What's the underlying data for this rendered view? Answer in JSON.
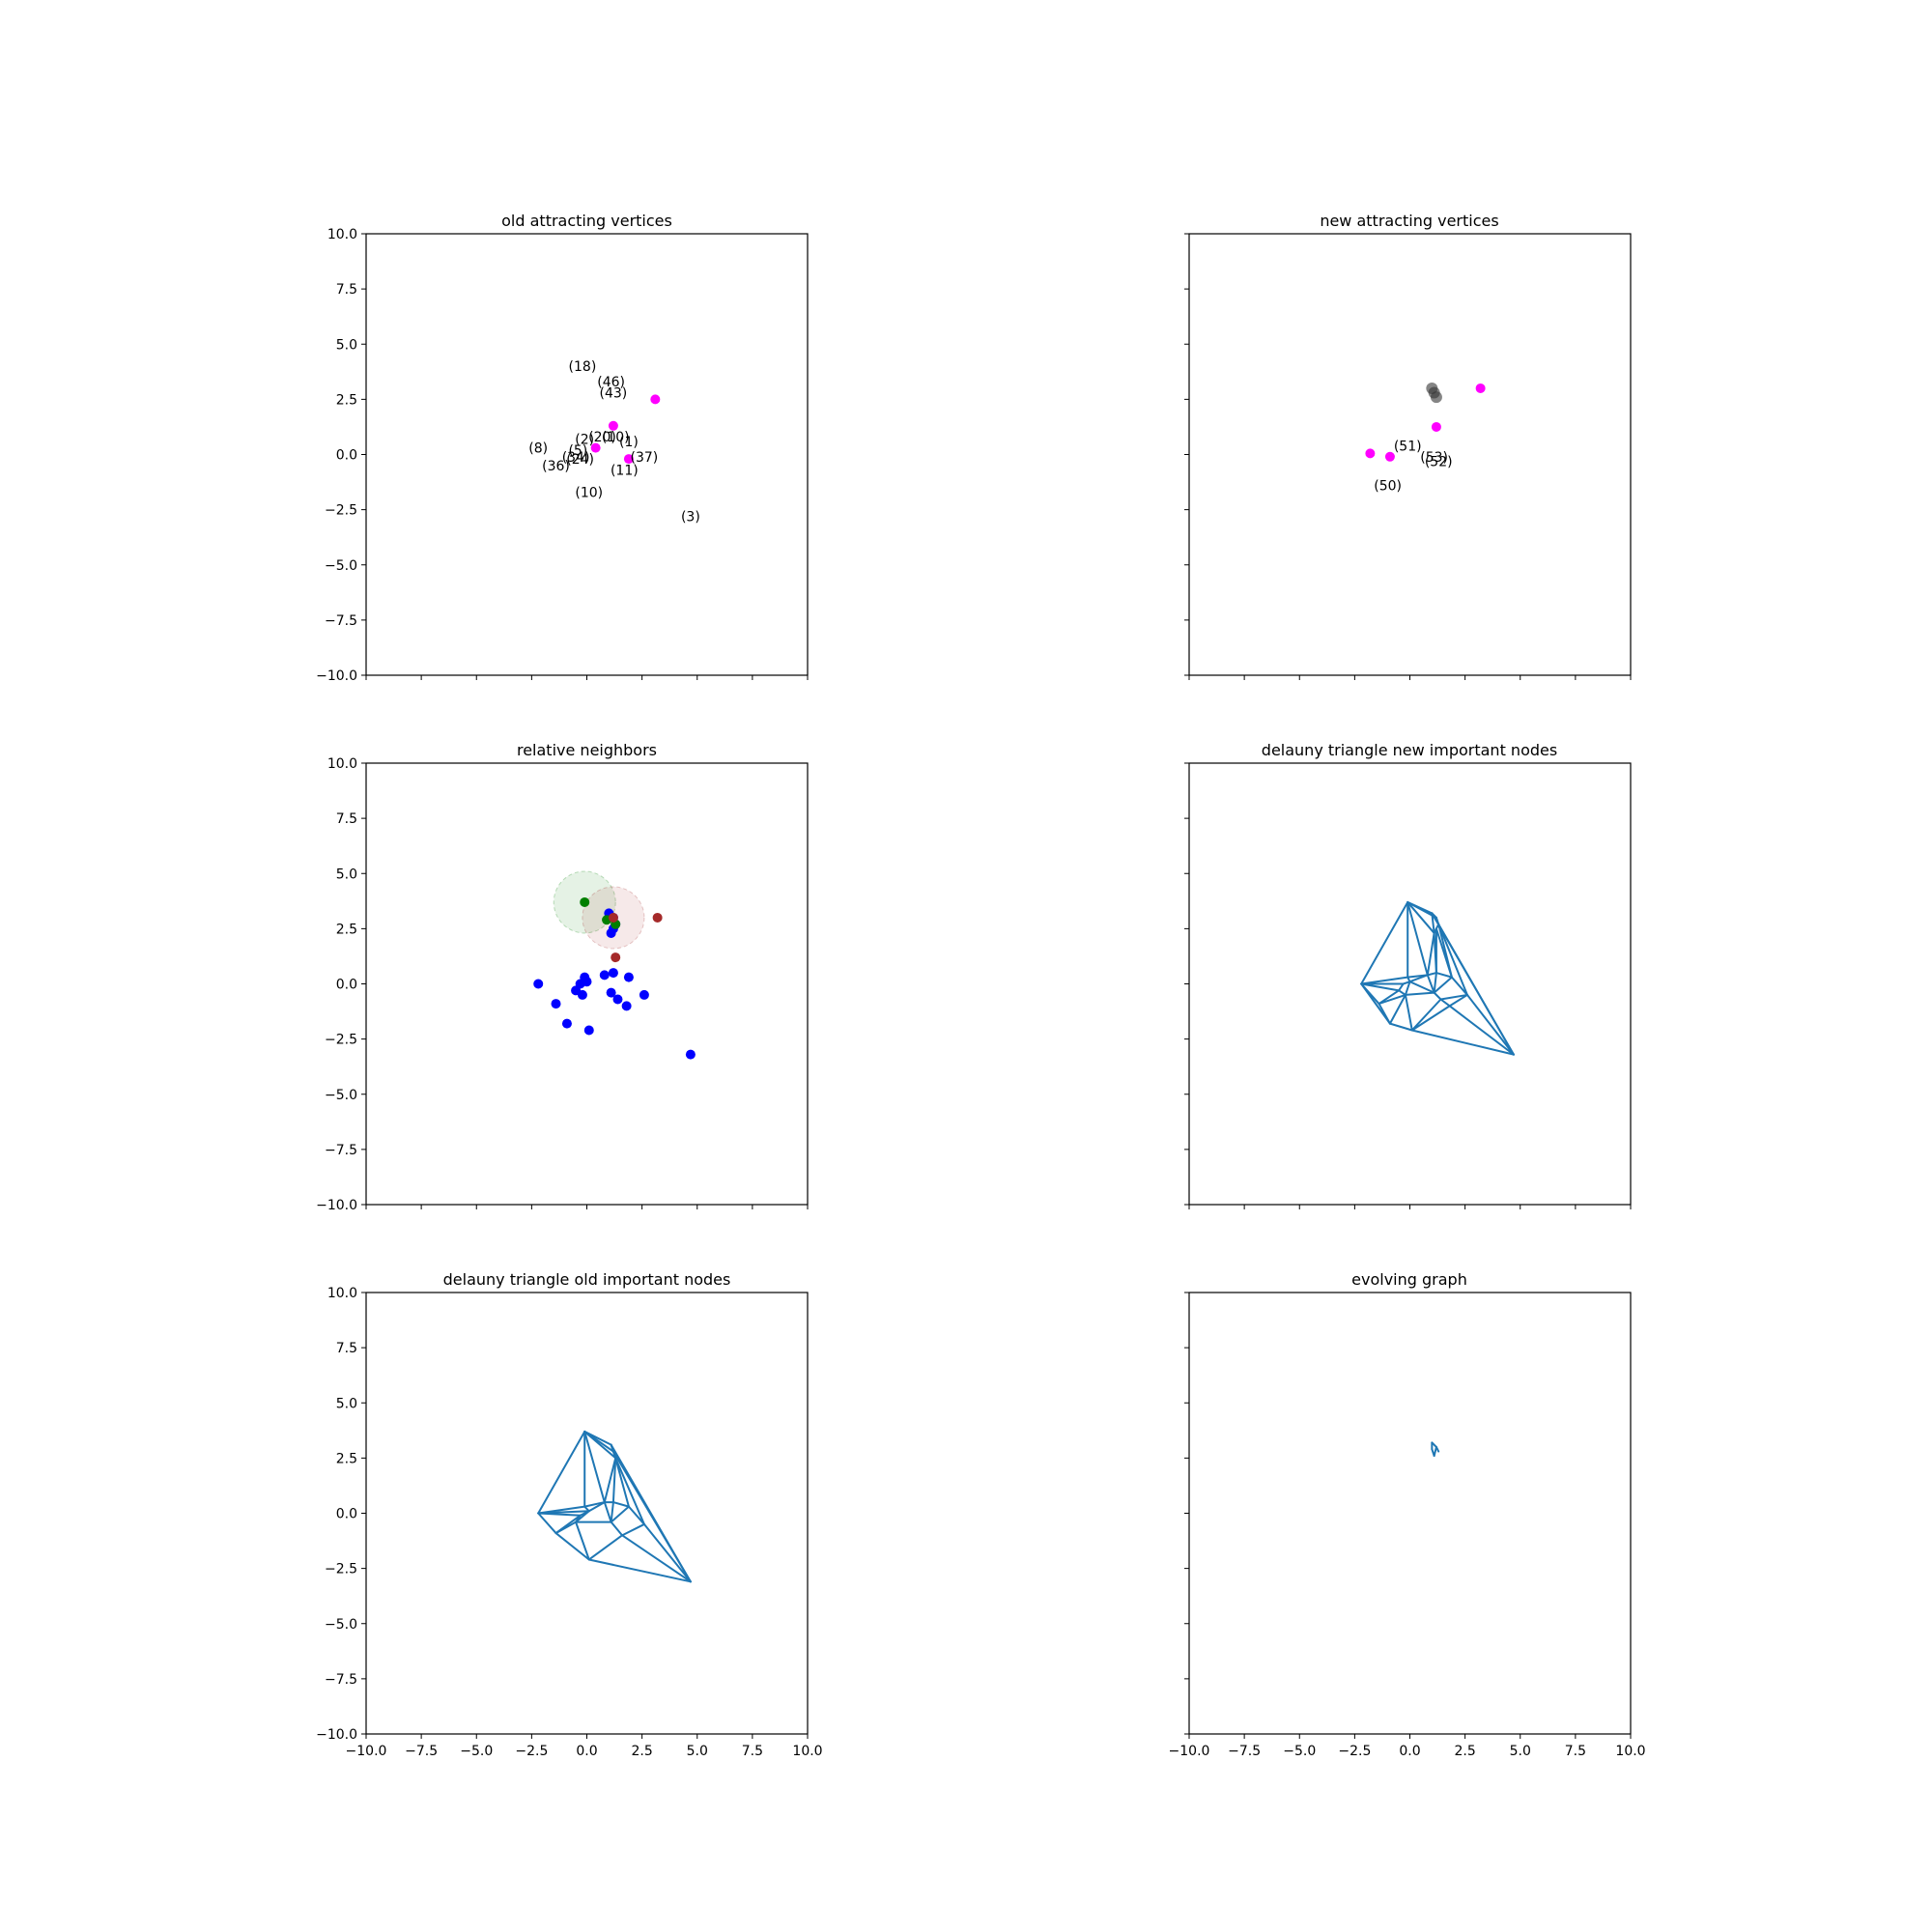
{
  "colors": {
    "magenta": "#ff00ff",
    "blue": "#0000ff",
    "green": "#007f00",
    "darkred": "#a52a2a",
    "line": "#1f77b4",
    "axis": "#000000",
    "gray_marker": "#333333"
  },
  "chart_data": [
    {
      "type": "scatter",
      "title": "old attracting vertices",
      "xlim": [
        -10,
        10
      ],
      "ylim": [
        -10,
        10
      ],
      "yticks": [
        "10.0",
        "7.5",
        "5.0",
        "2.5",
        "0.0",
        "−2.5",
        "−5.0",
        "−7.5",
        "−10.0"
      ],
      "xticks": [],
      "grid": false,
      "points": [
        {
          "x": 1.2,
          "y": 1.3,
          "color": "magenta"
        },
        {
          "x": 3.1,
          "y": 2.5,
          "color": "magenta"
        },
        {
          "x": 0.4,
          "y": 0.3,
          "color": "magenta"
        },
        {
          "x": 1.9,
          "y": -0.2,
          "color": "magenta"
        }
      ],
      "annotations": [
        {
          "text": "(18)",
          "x": -0.2,
          "y": 4.0
        },
        {
          "text": "(46)",
          "x": 1.1,
          "y": 3.3
        },
        {
          "text": "(43)",
          "x": 1.2,
          "y": 2.8
        },
        {
          "text": "(2)",
          "x": -0.1,
          "y": 0.7
        },
        {
          "text": "(20)",
          "x": 0.7,
          "y": 0.8
        },
        {
          "text": "(10)",
          "x": 1.3,
          "y": 0.8
        },
        {
          "text": "(1)",
          "x": 1.9,
          "y": 0.6
        },
        {
          "text": "(8)",
          "x": -2.2,
          "y": 0.3
        },
        {
          "text": "(5)",
          "x": -0.4,
          "y": 0.2
        },
        {
          "text": "(34)",
          "x": -0.5,
          "y": -0.1
        },
        {
          "text": "(24)",
          "x": -0.3,
          "y": -0.2
        },
        {
          "text": "(37)",
          "x": 2.6,
          "y": -0.1
        },
        {
          "text": "(36)",
          "x": -1.4,
          "y": -0.5
        },
        {
          "text": "(11)",
          "x": 1.7,
          "y": -0.7
        },
        {
          "text": "(10)",
          "x": 0.1,
          "y": -1.7
        },
        {
          "text": "(3)",
          "x": 4.7,
          "y": -2.8
        }
      ]
    },
    {
      "type": "scatter",
      "title": "new attracting vertices",
      "xlim": [
        -10,
        10
      ],
      "ylim": [
        -10,
        10
      ],
      "xticks": [],
      "yticks": [],
      "grid": false,
      "points": [
        {
          "x": 3.2,
          "y": 3.0,
          "color": "magenta"
        },
        {
          "x": 1.2,
          "y": 1.25,
          "color": "magenta"
        },
        {
          "x": -1.8,
          "y": 0.05,
          "color": "magenta"
        },
        {
          "x": -0.9,
          "y": -0.1,
          "color": "magenta"
        },
        {
          "x": 1.0,
          "y": 3.0,
          "color": "gray"
        },
        {
          "x": 1.2,
          "y": 2.6,
          "color": "gray"
        },
        {
          "x": 1.1,
          "y": 2.8,
          "color": "gray"
        }
      ],
      "annotations": [
        {
          "text": "(51)",
          "x": -0.1,
          "y": 0.4
        },
        {
          "text": "(53)",
          "x": 1.1,
          "y": -0.1
        },
        {
          "text": "(52)",
          "x": 1.3,
          "y": -0.3
        },
        {
          "text": "(50)",
          "x": -1.0,
          "y": -1.4
        }
      ]
    },
    {
      "type": "scatter",
      "title": "relative neighbors",
      "xlim": [
        -10,
        10
      ],
      "ylim": [
        -10,
        10
      ],
      "yticks": [
        "10.0",
        "7.5",
        "5.0",
        "2.5",
        "0.0",
        "−2.5",
        "−5.0",
        "−7.5",
        "−10.0"
      ],
      "xticks": [],
      "grid": false,
      "circles": [
        {
          "x": -0.1,
          "y": 3.7,
          "r": 1.4,
          "color": "green"
        },
        {
          "x": 1.2,
          "y": 3.0,
          "r": 1.4,
          "color": "darkred"
        }
      ],
      "points": [
        {
          "x": 1.0,
          "y": 3.2,
          "color": "blue"
        },
        {
          "x": 1.2,
          "y": 3.0,
          "color": "blue"
        },
        {
          "x": 1.3,
          "y": 2.7,
          "color": "blue"
        },
        {
          "x": 1.2,
          "y": 2.5,
          "color": "blue"
        },
        {
          "x": 1.1,
          "y": 2.3,
          "color": "blue"
        },
        {
          "x": -2.2,
          "y": 0.0,
          "color": "blue"
        },
        {
          "x": -0.1,
          "y": 0.3,
          "color": "blue"
        },
        {
          "x": -0.3,
          "y": 0.0,
          "color": "blue"
        },
        {
          "x": 0.0,
          "y": 0.1,
          "color": "blue"
        },
        {
          "x": -0.5,
          "y": -0.3,
          "color": "blue"
        },
        {
          "x": -0.2,
          "y": -0.5,
          "color": "blue"
        },
        {
          "x": 0.8,
          "y": 0.4,
          "color": "blue"
        },
        {
          "x": 1.2,
          "y": 0.5,
          "color": "blue"
        },
        {
          "x": 1.9,
          "y": 0.3,
          "color": "blue"
        },
        {
          "x": 1.1,
          "y": -0.4,
          "color": "blue"
        },
        {
          "x": 1.4,
          "y": -0.7,
          "color": "blue"
        },
        {
          "x": 2.6,
          "y": -0.5,
          "color": "blue"
        },
        {
          "x": 1.8,
          "y": -1.0,
          "color": "blue"
        },
        {
          "x": -1.4,
          "y": -0.9,
          "color": "blue"
        },
        {
          "x": -0.9,
          "y": -1.8,
          "color": "blue"
        },
        {
          "x": 0.1,
          "y": -2.1,
          "color": "blue"
        },
        {
          "x": 4.7,
          "y": -3.2,
          "color": "blue"
        },
        {
          "x": -0.1,
          "y": 3.7,
          "color": "green"
        },
        {
          "x": 1.3,
          "y": 2.7,
          "color": "green"
        },
        {
          "x": 0.9,
          "y": 2.9,
          "color": "green"
        },
        {
          "x": 3.2,
          "y": 3.0,
          "color": "darkred"
        },
        {
          "x": 1.3,
          "y": 1.2,
          "color": "darkred"
        },
        {
          "x": 1.2,
          "y": 3.0,
          "color": "darkred"
        }
      ]
    },
    {
      "type": "line",
      "title": "delauny triangle new important nodes",
      "xlim": [
        -10,
        10
      ],
      "ylim": [
        -10,
        10
      ],
      "xticks": [],
      "yticks": [],
      "grid": false,
      "nodes": [
        [
          -0.1,
          3.7
        ],
        [
          1.0,
          3.2
        ],
        [
          1.2,
          3.0
        ],
        [
          1.3,
          2.7
        ],
        [
          1.2,
          2.5
        ],
        [
          1.1,
          2.3
        ],
        [
          -2.2,
          0.0
        ],
        [
          -0.1,
          0.3
        ],
        [
          -0.3,
          0.0
        ],
        [
          0.0,
          0.1
        ],
        [
          -0.5,
          -0.3
        ],
        [
          -0.2,
          -0.5
        ],
        [
          0.8,
          0.4
        ],
        [
          1.2,
          0.5
        ],
        [
          1.9,
          0.3
        ],
        [
          1.1,
          -0.4
        ],
        [
          1.4,
          -0.7
        ],
        [
          2.6,
          -0.5
        ],
        [
          1.8,
          -1.0
        ],
        [
          -1.4,
          -0.9
        ],
        [
          -0.9,
          -1.8
        ],
        [
          0.1,
          -2.1
        ],
        [
          4.7,
          -3.2
        ]
      ],
      "edges": [
        [
          0,
          1
        ],
        [
          0,
          2
        ],
        [
          0,
          6
        ],
        [
          0,
          7
        ],
        [
          0,
          12
        ],
        [
          0,
          5
        ],
        [
          1,
          2
        ],
        [
          1,
          3
        ],
        [
          1,
          5
        ],
        [
          1,
          22
        ],
        [
          2,
          3
        ],
        [
          3,
          4
        ],
        [
          4,
          5
        ],
        [
          3,
          22
        ],
        [
          3,
          17
        ],
        [
          4,
          13
        ],
        [
          4,
          14
        ],
        [
          5,
          12
        ],
        [
          5,
          13
        ],
        [
          6,
          7
        ],
        [
          6,
          8
        ],
        [
          6,
          19
        ],
        [
          6,
          10
        ],
        [
          6,
          20
        ],
        [
          7,
          9
        ],
        [
          7,
          12
        ],
        [
          8,
          9
        ],
        [
          8,
          10
        ],
        [
          9,
          11
        ],
        [
          9,
          12
        ],
        [
          10,
          11
        ],
        [
          10,
          19
        ],
        [
          11,
          19
        ],
        [
          11,
          20
        ],
        [
          11,
          21
        ],
        [
          11,
          15
        ],
        [
          12,
          13
        ],
        [
          12,
          15
        ],
        [
          13,
          14
        ],
        [
          13,
          15
        ],
        [
          14,
          15
        ],
        [
          14,
          17
        ],
        [
          15,
          16
        ],
        [
          16,
          17
        ],
        [
          16,
          18
        ],
        [
          17,
          18
        ],
        [
          17,
          22
        ],
        [
          18,
          22
        ],
        [
          16,
          21
        ],
        [
          18,
          21
        ],
        [
          19,
          20
        ],
        [
          20,
          21
        ],
        [
          21,
          22
        ],
        [
          9,
          15
        ],
        [
          14,
          3
        ]
      ]
    },
    {
      "type": "line",
      "title": "delauny triangle old important nodes",
      "xlim": [
        -10,
        10
      ],
      "ylim": [
        -10,
        10
      ],
      "yticks": [
        "10.0",
        "7.5",
        "5.0",
        "2.5",
        "0.0",
        "−2.5",
        "−5.0",
        "−7.5",
        "−10.0"
      ],
      "xticks": [
        "−10.0",
        "−7.5",
        "−5.0",
        "−2.5",
        "0.0",
        "2.5",
        "5.0",
        "7.5",
        "10.0"
      ],
      "grid": false,
      "nodes": [
        [
          -0.1,
          3.7
        ],
        [
          1.1,
          3.1
        ],
        [
          1.2,
          2.8
        ],
        [
          1.3,
          2.5
        ],
        [
          -2.2,
          0.0
        ],
        [
          -0.1,
          0.3
        ],
        [
          -0.3,
          -0.1
        ],
        [
          0.1,
          0.1
        ],
        [
          -0.5,
          -0.4
        ],
        [
          0.8,
          0.5
        ],
        [
          1.2,
          0.5
        ],
        [
          1.9,
          0.3
        ],
        [
          1.1,
          -0.4
        ],
        [
          1.6,
          -1.0
        ],
        [
          2.6,
          -0.5
        ],
        [
          -1.4,
          -0.9
        ],
        [
          0.1,
          -2.1
        ],
        [
          4.7,
          -3.1
        ]
      ],
      "edges": [
        [
          0,
          1
        ],
        [
          0,
          2
        ],
        [
          0,
          4
        ],
        [
          0,
          5
        ],
        [
          0,
          9
        ],
        [
          0,
          3
        ],
        [
          1,
          2
        ],
        [
          1,
          17
        ],
        [
          1,
          3
        ],
        [
          2,
          3
        ],
        [
          2,
          17
        ],
        [
          3,
          9
        ],
        [
          3,
          10
        ],
        [
          3,
          11
        ],
        [
          3,
          14
        ],
        [
          4,
          5
        ],
        [
          4,
          6
        ],
        [
          4,
          15
        ],
        [
          4,
          7
        ],
        [
          5,
          7
        ],
        [
          5,
          9
        ],
        [
          6,
          7
        ],
        [
          6,
          8
        ],
        [
          7,
          8
        ],
        [
          7,
          9
        ],
        [
          8,
          15
        ],
        [
          8,
          16
        ],
        [
          8,
          12
        ],
        [
          9,
          10
        ],
        [
          9,
          12
        ],
        [
          10,
          11
        ],
        [
          10,
          12
        ],
        [
          11,
          12
        ],
        [
          11,
          14
        ],
        [
          12,
          13
        ],
        [
          13,
          14
        ],
        [
          13,
          16
        ],
        [
          14,
          17
        ],
        [
          13,
          17
        ],
        [
          15,
          16
        ],
        [
          16,
          17
        ],
        [
          6,
          15
        ]
      ]
    },
    {
      "type": "line",
      "title": "evolving graph",
      "xlim": [
        -10,
        10
      ],
      "ylim": [
        -10,
        10
      ],
      "xticks": [
        "−10.0",
        "−7.5",
        "−5.0",
        "−2.5",
        "0.0",
        "2.5",
        "5.0",
        "7.5",
        "10.0"
      ],
      "yticks": [],
      "grid": false,
      "nodes": [
        [
          1.0,
          3.2
        ],
        [
          1.2,
          3.0
        ],
        [
          1.3,
          2.8
        ],
        [
          1.1,
          2.6
        ],
        [
          1.0,
          2.9
        ]
      ],
      "edges": [
        [
          0,
          1
        ],
        [
          1,
          2
        ],
        [
          1,
          3
        ],
        [
          3,
          4
        ],
        [
          4,
          0
        ]
      ]
    }
  ]
}
